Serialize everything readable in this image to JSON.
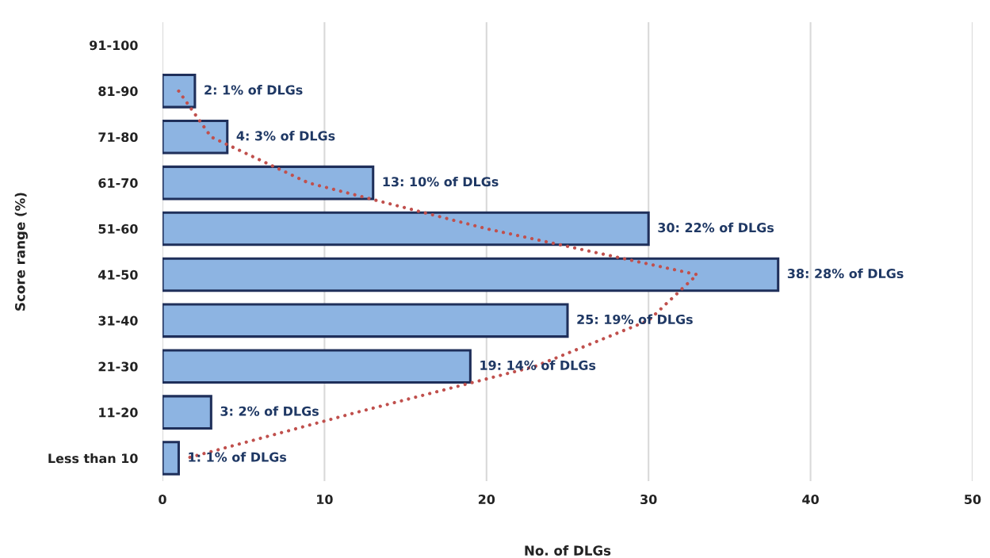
{
  "chart_data": {
    "type": "bar",
    "orientation": "horizontal",
    "categories": [
      "91-100",
      "81-90",
      "71-80",
      "61-70",
      "51-60",
      "41-50",
      "31-40",
      "21-30",
      "11-20",
      "Less than 10"
    ],
    "xlabel": "No. of DLGs",
    "ylabel": "Score range (%)",
    "xlim": [
      0,
      50
    ],
    "xticks": [
      0,
      10,
      20,
      30,
      40,
      50
    ],
    "grid": "x",
    "line_style": "dotted",
    "series": [
      {
        "color": "#8db4e2",
        "values": [
          null,
          2,
          4,
          13,
          30,
          38,
          25,
          19,
          3,
          1
        ],
        "value_labels": [
          null,
          "2: 1% of DLGs",
          "4: 3% of DLGs",
          "13: 10% of DLGs",
          "30: 22% of DLGs",
          "38: 28% of DLGs",
          "25: 19% of DLGs",
          "19: 14% of DLGs",
          "3: 2% of DLGs",
          "1: 1% of DLGs"
        ]
      },
      {
        "type": "line",
        "color": "#c0504d",
        "values": [
          null,
          1,
          3,
          9,
          20,
          33,
          30,
          23,
          12,
          1.5
        ]
      }
    ]
  }
}
